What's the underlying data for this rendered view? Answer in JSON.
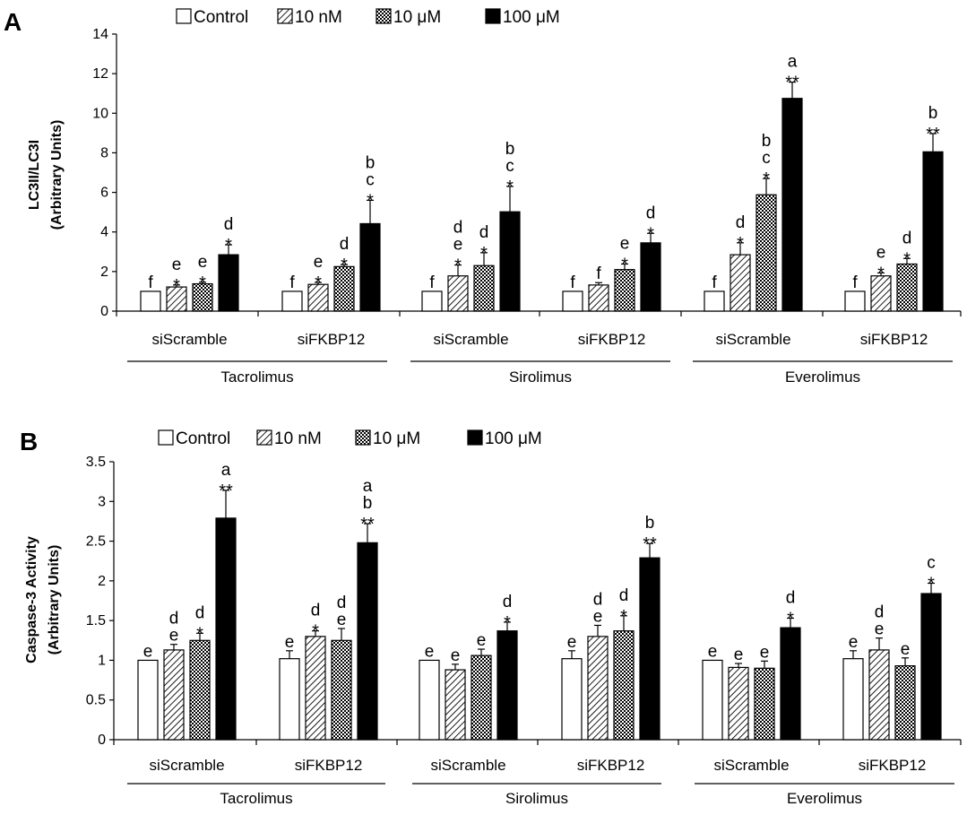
{
  "chart_data": [
    {
      "panel": "A",
      "type": "bar",
      "ylabel": [
        "LC3II/LC3I",
        "(Arbitrary Units)"
      ],
      "ylim": [
        0,
        14
      ],
      "yticks": [
        "0",
        "2",
        "4",
        "6",
        "8",
        "10",
        "12",
        "14"
      ],
      "grid": false,
      "legend_position": "top",
      "legend": [
        "Control",
        "10 nM",
        "10 μM",
        "100 μM"
      ],
      "drugs": [
        "Tacrolimus",
        "Sirolimus",
        "Everolimus"
      ],
      "groups": [
        {
          "label": "siScramble",
          "drug": 0,
          "values": [
            1.0,
            1.22,
            1.38,
            2.85
          ],
          "errors": [
            0,
            0.1,
            0.08,
            0.5
          ],
          "letters": [
            "f",
            "e",
            "e",
            "d"
          ],
          "stars": [
            "",
            "*",
            "*",
            "*"
          ]
        },
        {
          "label": "siFKBP12",
          "drug": 0,
          "values": [
            1.0,
            1.35,
            2.25,
            4.42
          ],
          "errors": [
            0,
            0.1,
            0.1,
            1.18
          ],
          "letters": [
            "f",
            "e",
            "d",
            "b\nc"
          ],
          "stars": [
            "",
            "*",
            "*",
            "*"
          ]
        },
        {
          "label": "siScramble",
          "drug": 1,
          "values": [
            1.0,
            1.78,
            2.3,
            5.02
          ],
          "errors": [
            0,
            0.55,
            0.65,
            1.28
          ],
          "letters": [
            "f",
            "d\ne",
            "d",
            "b\nc"
          ],
          "stars": [
            "",
            "*",
            "*",
            "*"
          ]
        },
        {
          "label": "siFKBP12",
          "drug": 1,
          "values": [
            1.0,
            1.32,
            2.1,
            3.45
          ],
          "errors": [
            0,
            0.12,
            0.28,
            0.48
          ],
          "letters": [
            "f",
            "f",
            "e",
            "d"
          ],
          "stars": [
            "",
            "",
            "*",
            "*"
          ]
        },
        {
          "label": "siScramble",
          "drug": 2,
          "values": [
            1.0,
            2.85,
            5.88,
            10.75
          ],
          "errors": [
            0,
            0.6,
            0.82,
            0.82
          ],
          "letters": [
            "f",
            "d",
            "b\nc",
            "a"
          ],
          "stars": [
            "",
            "*",
            "*",
            "**"
          ]
        },
        {
          "label": "siFKBP12",
          "drug": 2,
          "values": [
            1.0,
            1.78,
            2.38,
            8.05
          ],
          "errors": [
            0,
            0.15,
            0.28,
            0.92
          ],
          "letters": [
            "f",
            "e",
            "d",
            "b"
          ],
          "stars": [
            "",
            "*",
            "*",
            "**"
          ]
        }
      ]
    },
    {
      "panel": "B",
      "type": "bar",
      "ylabel": [
        "Caspase-3 Activity",
        "(Arbitrary Units)"
      ],
      "ylim": [
        0,
        3.5
      ],
      "yticks": [
        "0",
        "0.5",
        "1",
        "1.5",
        "2",
        "2.5",
        "3",
        "3.5"
      ],
      "grid": false,
      "legend_position": "top",
      "legend": [
        "Control",
        "10 nM",
        "10 μM",
        "100 μM"
      ],
      "drugs": [
        "Tacrolimus",
        "Sirolimus",
        "Everolimus"
      ],
      "groups": [
        {
          "label": "siScramble",
          "drug": 0,
          "values": [
            1.0,
            1.13,
            1.25,
            2.79
          ],
          "errors": [
            0,
            0.07,
            0.09,
            0.35
          ],
          "letters": [
            "e",
            "d\ne",
            "d",
            "a"
          ],
          "stars": [
            "",
            "",
            "*",
            "**"
          ]
        },
        {
          "label": "siFKBP12",
          "drug": 0,
          "values": [
            1.02,
            1.3,
            1.25,
            2.48
          ],
          "errors": [
            0.1,
            0.07,
            0.15,
            0.24
          ],
          "letters": [
            "e",
            "d",
            "d\ne",
            "a\nb"
          ],
          "stars": [
            "",
            "*",
            "",
            "**"
          ]
        },
        {
          "label": "siScramble",
          "drug": 1,
          "values": [
            1.0,
            0.88,
            1.06,
            1.37
          ],
          "errors": [
            0,
            0.07,
            0.08,
            0.11
          ],
          "letters": [
            "e",
            "e",
            "e",
            "d"
          ],
          "stars": [
            "",
            "",
            "",
            "*"
          ]
        },
        {
          "label": "siFKBP12",
          "drug": 1,
          "values": [
            1.02,
            1.3,
            1.37,
            2.29
          ],
          "errors": [
            0.1,
            0.14,
            0.19,
            0.18
          ],
          "letters": [
            "e",
            "d\ne",
            "d",
            "b"
          ],
          "stars": [
            "",
            "",
            "*",
            "**"
          ]
        },
        {
          "label": "siScramble",
          "drug": 2,
          "values": [
            1.0,
            0.91,
            0.9,
            1.41
          ],
          "errors": [
            0,
            0.05,
            0.09,
            0.12
          ],
          "letters": [
            "e",
            "e",
            "e",
            "d"
          ],
          "stars": [
            "",
            "",
            "",
            "*"
          ]
        },
        {
          "label": "siFKBP12",
          "drug": 2,
          "values": [
            1.02,
            1.13,
            0.93,
            1.84
          ],
          "errors": [
            0.1,
            0.15,
            0.1,
            0.13
          ],
          "letters": [
            "e",
            "d\ne",
            "e",
            "c"
          ],
          "stars": [
            "",
            "",
            "",
            "*"
          ]
        }
      ]
    }
  ]
}
